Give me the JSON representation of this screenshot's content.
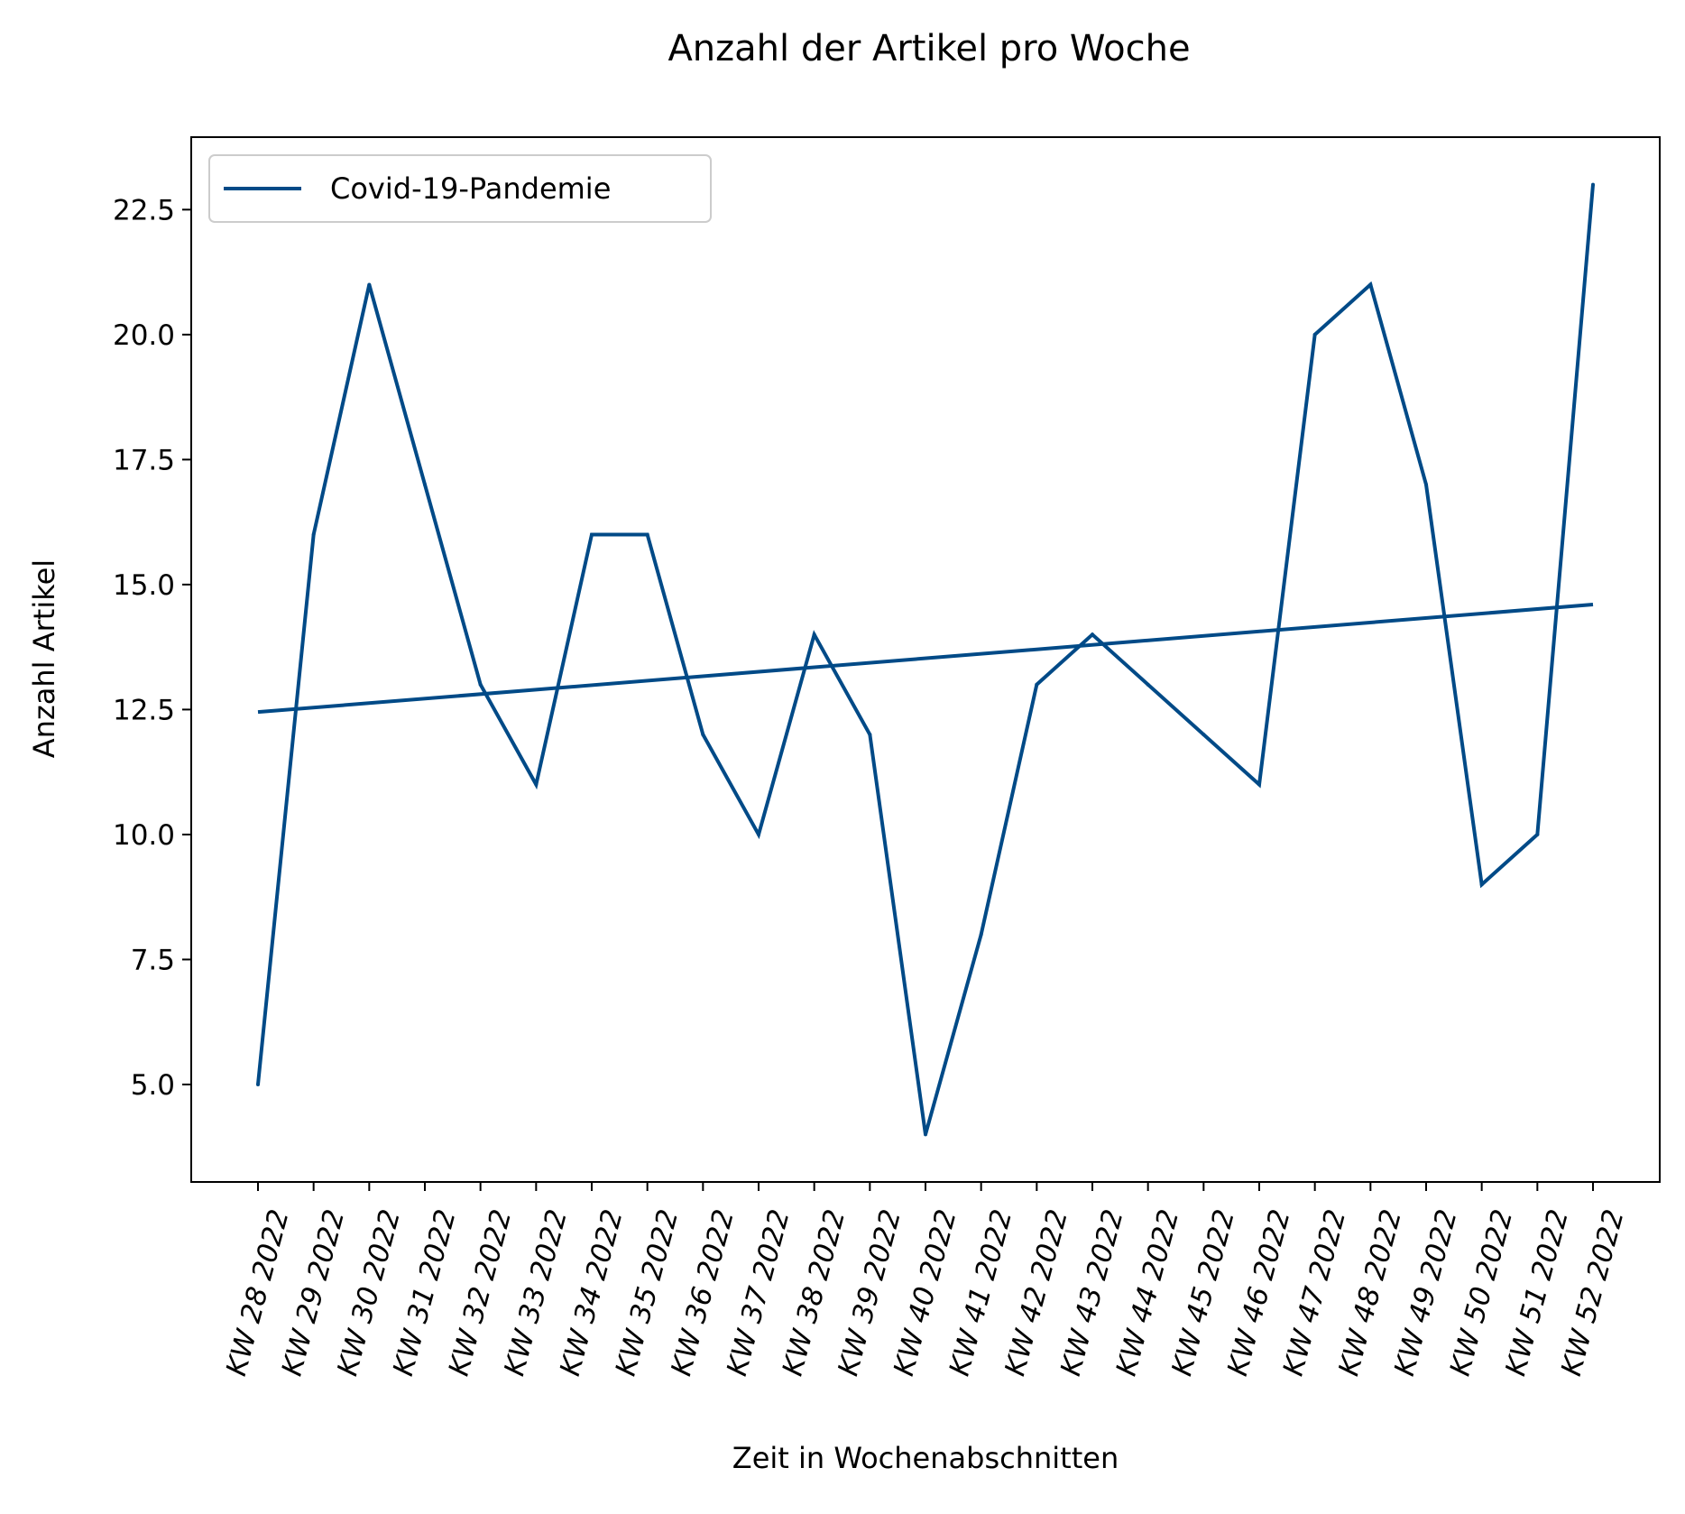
{
  "chart_data": {
    "type": "line",
    "title": "Anzahl der Artikel pro Woche",
    "xlabel": "Zeit in Wochenabschnitten",
    "ylabel": "Anzahl Artikel",
    "categories": [
      "KW 28 2022",
      "KW 29 2022",
      "KW 30 2022",
      "KW 31 2022",
      "KW 32 2022",
      "KW 33 2022",
      "KW 34 2022",
      "KW 35 2022",
      "KW 36 2022",
      "KW 37 2022",
      "KW 38 2022",
      "KW 39 2022",
      "KW 40 2022",
      "KW 41 2022",
      "KW 42 2022",
      "KW 43 2022",
      "KW 44 2022",
      "KW 45 2022",
      "KW 46 2022",
      "KW 47 2022",
      "KW 48 2022",
      "KW 49 2022",
      "KW 50 2022",
      "KW 51 2022",
      "KW 52 2022"
    ],
    "series": [
      {
        "name": "Covid-19-Pandemie",
        "values": [
          5,
          16,
          21,
          17,
          13,
          11,
          16,
          16,
          12,
          10,
          14,
          12,
          4,
          8,
          13,
          14,
          13,
          12,
          11,
          20,
          21,
          17,
          9,
          10,
          23
        ]
      }
    ],
    "trendline": {
      "start": 12.45,
      "end": 14.6
    },
    "ylim": [
      3.05,
      23.95
    ],
    "yticks": [
      5.0,
      7.5,
      10.0,
      12.5,
      15.0,
      17.5,
      20.0,
      22.5
    ],
    "ytick_labels": [
      "5.0",
      "7.5",
      "10.0",
      "12.5",
      "15.0",
      "17.5",
      "20.0",
      "22.5"
    ],
    "legend": {
      "placement": "top-left"
    },
    "grid": false,
    "colors": {
      "series": "#004a87",
      "axes": "#000000"
    }
  }
}
